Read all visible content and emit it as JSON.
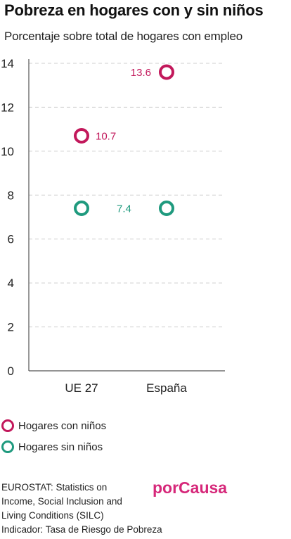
{
  "colors": {
    "con_ninos": "#c2185b",
    "sin_ninos": "#1f9a7e",
    "brand": "#d6287a",
    "grid": "#cfcfcf",
    "axis": "#555555"
  },
  "chart_data": {
    "type": "scatter",
    "title": "Pobreza en hogares con y sin niños",
    "subtitle": "Porcentaje sobre total de hogares con empleo",
    "categories": [
      "UE 27",
      "España"
    ],
    "ylim": [
      0,
      14
    ],
    "yticks": [
      0,
      2,
      4,
      6,
      8,
      10,
      12,
      14
    ],
    "grid": true,
    "legend_position": "bottom-left",
    "series": [
      {
        "name": "Hogares con niños",
        "values": [
          10.7,
          13.6
        ],
        "data_labels": [
          "10.7",
          "13.6"
        ],
        "color": "#c2185b"
      },
      {
        "name": "Hogares sin niños",
        "values": [
          7.4,
          7.4
        ],
        "data_labels": [
          "7.4",
          null
        ],
        "color": "#1f9a7e"
      }
    ]
  },
  "footer": {
    "source_lines": [
      "EUROSTAT: Statistics on",
      "Income, Social Inclusion and",
      "Living Conditions (SILC)",
      "Indicador: Tasa de Riesgo de Pobreza"
    ],
    "brand": "porCausa"
  }
}
